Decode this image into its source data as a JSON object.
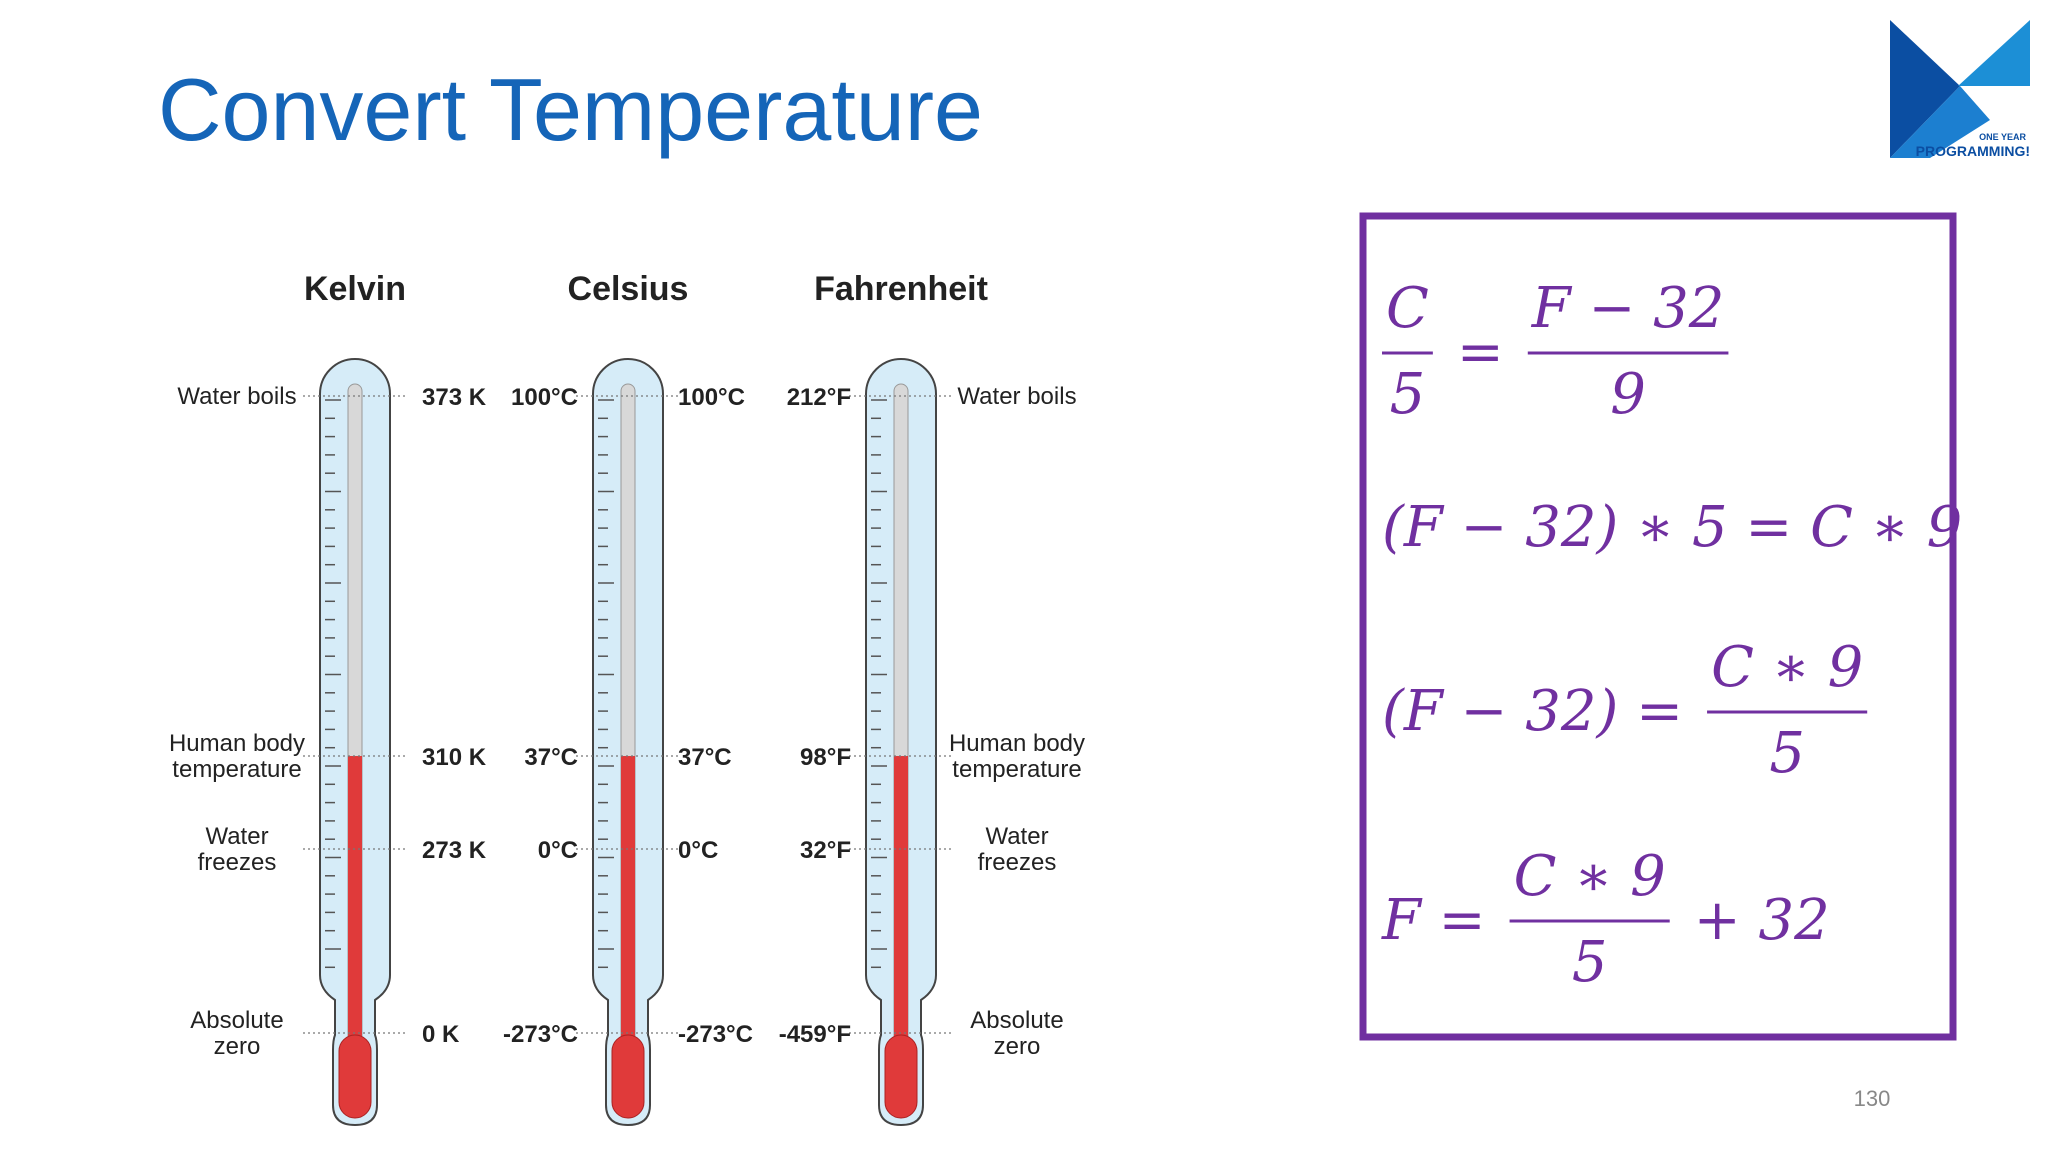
{
  "title": "Convert Temperature",
  "logo": {
    "line1": "ONE YEAR",
    "line2": "PROGRAMMING!"
  },
  "reference_labels": [
    [
      "Water boils"
    ],
    [
      "Human body",
      "temperature"
    ],
    [
      "Water",
      "freezes"
    ],
    [
      "Absolute",
      "zero"
    ]
  ],
  "thermometers": [
    {
      "name": "Kelvin",
      "right": [
        "373 K",
        "310 K",
        "273 K",
        "0 K"
      ]
    },
    {
      "name": "Celsius",
      "left": [
        "100°C",
        "37°C",
        "0°C",
        "-273°C"
      ],
      "right": [
        "100°C",
        "37°C",
        "0°C",
        "-273°C"
      ]
    },
    {
      "name": "Fahrenheit",
      "left": [
        "212°F",
        "98°F",
        "32°F",
        "-459°F"
      ]
    }
  ],
  "formulas": [
    [
      {
        "num": "C",
        "den": "5"
      },
      {
        "text": "="
      },
      {
        "num": "F − 32",
        "den": "9"
      }
    ],
    [
      {
        "text": "(F − 32) ∗ 5  = C ∗ 9"
      }
    ],
    [
      {
        "text": "(F − 32) ="
      },
      {
        "num": "C ∗ 9",
        "den": "5"
      }
    ],
    [
      {
        "text": "F ="
      },
      {
        "num": "C ∗ 9",
        "den": "5"
      },
      {
        "text": "+ 32"
      }
    ]
  ],
  "page_number": "130"
}
